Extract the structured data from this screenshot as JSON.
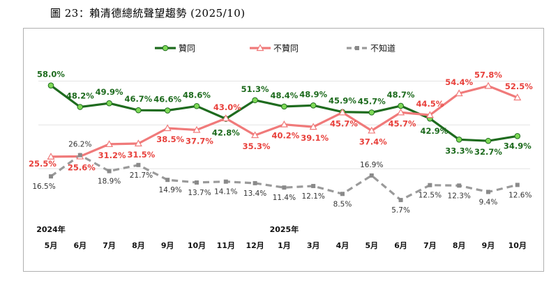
{
  "caption": "圖 23：賴清德總統聲望趨勢 (2025/10)",
  "chart_data": {
    "type": "line",
    "title": "賴清德總統聲望趨勢 (2025/10)",
    "categories": [
      "5月",
      "6月",
      "7月",
      "8月",
      "9月",
      "10月",
      "11月",
      "12月",
      "1月",
      "3月",
      "4月",
      "5月",
      "6月",
      "7月",
      "8月",
      "9月",
      "10月"
    ],
    "year_labels": [
      {
        "index": 0,
        "label": "2024年"
      },
      {
        "index": 8,
        "label": "2025年"
      }
    ],
    "ylim": [
      0,
      70
    ],
    "grid": true,
    "legend_position": "top",
    "series": [
      {
        "name": "贊同",
        "color": "#1e6b1e",
        "marker_fill": "#7ed957",
        "label_color": "#1e6b1e",
        "values": [
          58.0,
          48.2,
          49.9,
          46.7,
          46.6,
          48.6,
          42.8,
          51.3,
          48.4,
          48.9,
          45.9,
          45.7,
          48.7,
          42.9,
          33.3,
          32.7,
          34.9
        ],
        "labels": [
          "58.0%",
          "48.2%",
          "49.9%",
          "46.7%",
          "46.6%",
          "48.6%",
          "42.8%",
          "51.3%",
          "48.4%",
          "48.9%",
          "45.9%",
          "45.7%",
          "48.7%",
          "42.9%",
          "33.3%",
          "32.7%",
          "34.9%"
        ]
      },
      {
        "name": "不贊同",
        "color": "#f07a7a",
        "marker_fill": "#ffffff",
        "label_color": "#e8413c",
        "values": [
          25.5,
          25.6,
          31.2,
          31.5,
          38.5,
          37.7,
          43.0,
          35.3,
          40.2,
          39.1,
          45.7,
          37.4,
          45.7,
          44.5,
          54.4,
          57.8,
          52.5
        ],
        "labels": [
          "25.5%",
          "25.6%",
          "31.2%",
          "31.5%",
          "38.5%",
          "37.7%",
          "43.0%",
          "35.3%",
          "40.2%",
          "39.1%",
          "45.7%",
          "37.4%",
          "45.7%",
          "44.5%",
          "54.4%",
          "57.8%",
          "52.5%"
        ]
      },
      {
        "name": "不知道",
        "color": "#9a9a9a",
        "marker_fill": "#8a8a8a",
        "label_color": "#333333",
        "values": [
          16.5,
          26.2,
          18.9,
          21.7,
          14.9,
          13.7,
          14.1,
          13.4,
          11.4,
          12.1,
          8.5,
          16.9,
          5.7,
          12.5,
          12.3,
          9.4,
          12.6
        ],
        "labels": [
          "16.5%",
          "26.2%",
          "18.9%",
          "21.7%",
          "14.9%",
          "13.7%",
          "14.1%",
          "13.4%",
          "11.4%",
          "12.1%",
          "8.5%",
          "16.9%",
          "5.7%",
          "12.5%",
          "12.3%",
          "9.4%",
          "12.6%"
        ]
      }
    ]
  }
}
